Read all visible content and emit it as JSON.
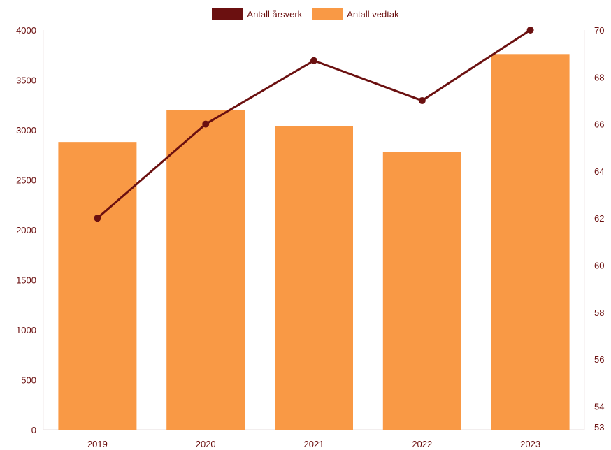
{
  "chart_data": {
    "type": "bar",
    "categories": [
      "2019",
      "2020",
      "2021",
      "2022",
      "2023"
    ],
    "series": [
      {
        "name": "Antall vedtak",
        "kind": "bar",
        "axis": "left",
        "color": "#f99945",
        "values": [
          2880,
          3200,
          3040,
          2780,
          3760
        ]
      },
      {
        "name": "Antall årsverk",
        "kind": "line",
        "axis": "right",
        "color": "#6b1010",
        "values": [
          62,
          66,
          68.7,
          67,
          70
        ]
      }
    ],
    "y_left": {
      "ylim": [
        0,
        4000
      ],
      "ticks": [
        "0",
        "500",
        "1000",
        "1500",
        "2000",
        "2500",
        "3000",
        "3500",
        "4000"
      ]
    },
    "y_right": {
      "ylim": [
        53,
        70
      ],
      "ticks": [
        "53",
        "54",
        "56",
        "58",
        "60",
        "62",
        "64",
        "66",
        "68",
        "70"
      ]
    },
    "legend": {
      "position": "top-center",
      "items": [
        "Antall årsverk",
        "Antall vedtak"
      ]
    },
    "grid": false,
    "text_color": "#6b1010"
  }
}
